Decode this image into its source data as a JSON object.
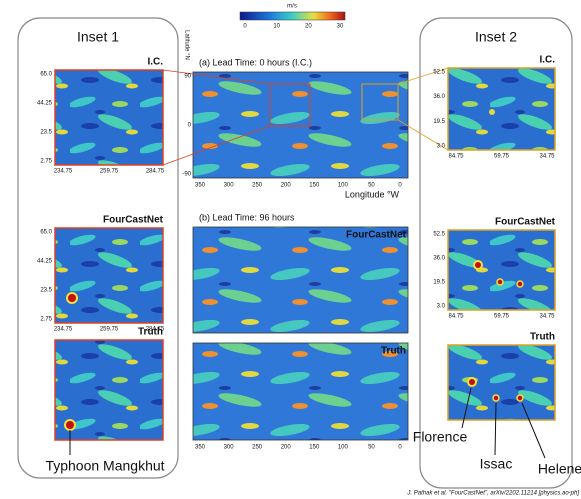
{
  "colorbar": {
    "unit": "m/s",
    "ticks": [
      "0",
      "10",
      "20",
      "30"
    ]
  },
  "inset1": {
    "title": "Inset 1",
    "panels": [
      {
        "label": "I.C.",
        "yticks": [
          "65.0",
          "44.25",
          "23.5",
          "2.75"
        ],
        "xticks": [
          "234.75",
          "259.75",
          "284.75"
        ]
      },
      {
        "label": "FourCastNet",
        "yticks": [
          "65.0",
          "44.25",
          "23.5",
          "2.75"
        ],
        "xticks": [
          "234.75",
          "259.75",
          "284.75"
        ]
      },
      {
        "label": "Truth"
      }
    ],
    "annotation": "Typhoon Mangkhut"
  },
  "global": {
    "panels": [
      {
        "title": "(a) Lead Time: 0 hours (I.C.)"
      },
      {
        "title": "(b) Lead Time: 96 hours",
        "label": "FourCastNet"
      },
      {
        "label": "Truth"
      }
    ],
    "ylabel": "Latitude °N",
    "xlabel": "Longitude °W",
    "yticks": [
      "90",
      "0",
      "-90"
    ],
    "xticks": [
      "350",
      "300",
      "250",
      "200",
      "150",
      "100",
      "50",
      "0"
    ]
  },
  "inset2": {
    "title": "Inset 2",
    "panels": [
      {
        "label": "I.C.",
        "yticks": [
          "52.5",
          "36.0",
          "19.5",
          "3.0"
        ],
        "xticks": [
          "84.75",
          "59.75",
          "34.75"
        ]
      },
      {
        "label": "FourCastNet",
        "yticks": [
          "52.5",
          "36.0",
          "19.5",
          "3.0"
        ],
        "xticks": [
          "84.75",
          "59.75",
          "34.75"
        ]
      },
      {
        "label": "Truth"
      }
    ],
    "annotations": [
      "Florence",
      "Issac",
      "Helene"
    ]
  },
  "citation": "J. Pathak et al. \"FourCastNet\", arXiv/2202.11214 [physics.ao-ph]"
}
